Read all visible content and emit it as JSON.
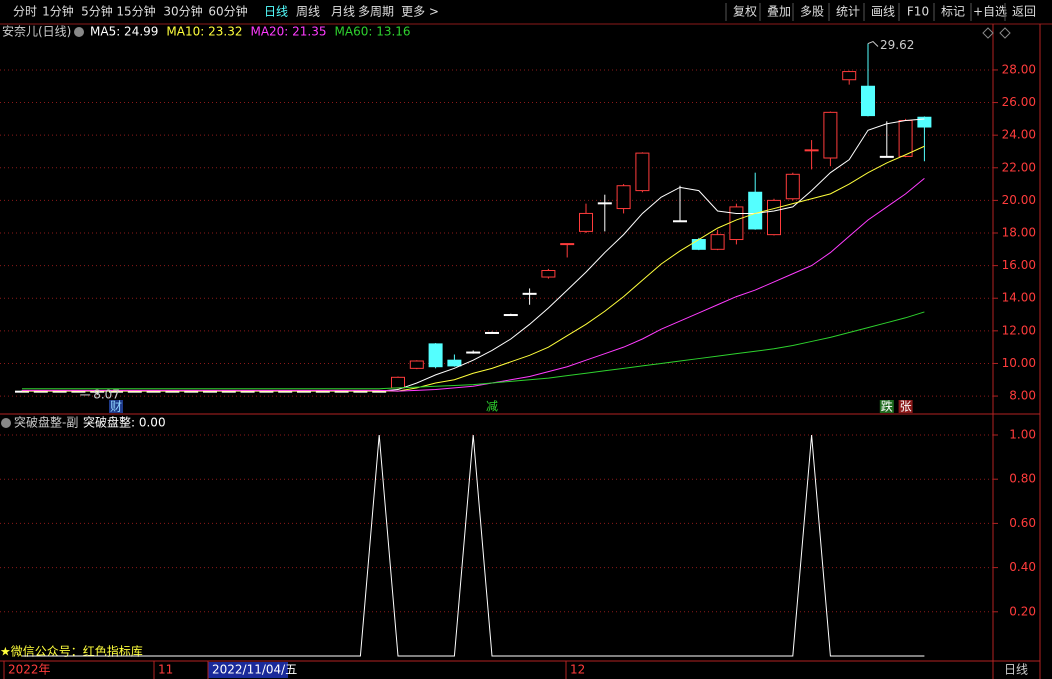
{
  "toolbar": {
    "left": [
      "分时",
      "1分钟",
      "5分钟",
      "15分钟",
      "30分钟",
      "60分钟",
      "日线",
      "周线",
      "月线",
      "多周期",
      "更多 >"
    ],
    "active": "日线",
    "right": [
      "复权",
      "叠加",
      "多股",
      "统计",
      "画线",
      "F10",
      "标记",
      "+自选",
      "返回"
    ]
  },
  "chart_data": [
    {
      "type": "candlestick",
      "title": "安奈儿(日线)",
      "up_color": "#ff3c3c",
      "down_color": "#54ffff",
      "doji_color": "#ffffff",
      "open": [
        8.3,
        8.3,
        8.3,
        8.3,
        8.3,
        8.3,
        8.3,
        8.3,
        8.3,
        8.3,
        8.3,
        8.3,
        8.3,
        8.3,
        8.3,
        8.3,
        8.3,
        8.3,
        8.3,
        8.3,
        8.5,
        9.7,
        11.2,
        10.2,
        10.7,
        11.9,
        13.0,
        14.3,
        15.3,
        17.3,
        18.1,
        19.85,
        19.5,
        20.6,
        null,
        18.75,
        17.6,
        17.0,
        17.6,
        20.5,
        17.9,
        20.1,
        23.05,
        22.6,
        27.4,
        27.0,
        22.7,
        22.7,
        25.1
      ],
      "close": [
        8.3,
        8.3,
        8.3,
        8.3,
        8.3,
        8.3,
        8.3,
        8.3,
        8.3,
        8.3,
        8.3,
        8.3,
        8.3,
        8.3,
        8.3,
        8.3,
        8.3,
        8.3,
        8.3,
        8.3,
        9.15,
        10.15,
        9.8,
        9.85,
        10.7,
        11.9,
        13.0,
        14.3,
        15.7,
        17.35,
        19.2,
        19.85,
        20.9,
        22.9,
        null,
        18.75,
        17.0,
        17.9,
        19.6,
        18.25,
        20.0,
        21.6,
        23.1,
        25.4,
        27.9,
        25.2,
        22.7,
        24.9,
        24.5
      ],
      "high": [
        8.35,
        8.35,
        8.35,
        8.35,
        8.35,
        8.35,
        8.35,
        8.35,
        8.35,
        8.35,
        8.35,
        8.35,
        8.35,
        8.35,
        8.35,
        8.35,
        8.35,
        8.35,
        8.35,
        8.35,
        9.2,
        10.2,
        11.25,
        10.55,
        10.8,
        11.95,
        13.05,
        14.6,
        15.8,
        17.35,
        19.8,
        20.35,
        21.0,
        22.95,
        null,
        20.9,
        17.7,
        18.2,
        19.8,
        21.7,
        20.1,
        21.7,
        23.7,
        25.45,
        27.95,
        29.62,
        24.85,
        25.0,
        25.15
      ],
      "low": [
        8.25,
        8.25,
        8.25,
        8.25,
        8.07,
        8.25,
        8.25,
        8.25,
        8.25,
        8.25,
        8.25,
        8.25,
        8.25,
        8.25,
        8.25,
        8.25,
        8.25,
        8.25,
        8.25,
        8.25,
        8.45,
        9.65,
        9.7,
        9.8,
        10.6,
        11.85,
        12.95,
        13.6,
        15.2,
        16.5,
        18.0,
        18.1,
        19.2,
        20.5,
        null,
        18.75,
        16.95,
        16.95,
        17.3,
        18.2,
        17.85,
        20.0,
        21.9,
        22.1,
        27.1,
        25.15,
        22.7,
        22.65,
        22.4
      ],
      "max_price": 29.62,
      "min_price": 8.07,
      "series": [
        {
          "name": "MA5",
          "legend_label": "MA5: 24.99",
          "color": "#ffffff",
          "values": [
            8.3,
            8.3,
            8.3,
            8.3,
            8.3,
            8.3,
            8.3,
            8.3,
            8.3,
            8.3,
            8.3,
            8.3,
            8.3,
            8.3,
            8.3,
            8.3,
            8.3,
            8.3,
            8.3,
            8.3,
            8.4,
            8.8,
            9.3,
            9.7,
            10.2,
            10.8,
            11.5,
            12.4,
            13.4,
            14.5,
            15.6,
            16.8,
            17.9,
            19.2,
            20.2,
            20.8,
            20.6,
            19.35,
            19.2,
            19.2,
            19.35,
            19.6,
            20.6,
            21.7,
            22.5,
            24.3,
            24.7,
            24.9,
            24.99
          ]
        },
        {
          "name": "MA10",
          "legend_label": "MA10: 23.32",
          "color": "#ffff3c",
          "values": [
            8.32,
            8.32,
            8.32,
            8.32,
            8.32,
            8.32,
            8.32,
            8.32,
            8.32,
            8.32,
            8.32,
            8.32,
            8.32,
            8.32,
            8.32,
            8.32,
            8.32,
            8.32,
            8.32,
            8.32,
            8.3,
            8.5,
            8.8,
            9.0,
            9.4,
            9.7,
            10.1,
            10.5,
            11.0,
            11.7,
            12.4,
            13.2,
            14.1,
            15.1,
            16.1,
            16.9,
            17.6,
            18.3,
            18.8,
            19.2,
            19.5,
            19.8,
            20.1,
            20.4,
            21.0,
            21.7,
            22.3,
            22.8,
            23.32
          ]
        },
        {
          "name": "MA20",
          "legend_label": "MA20: 21.35",
          "color": "#ff3cff",
          "values": [
            8.35,
            8.35,
            8.35,
            8.35,
            8.35,
            8.35,
            8.35,
            8.35,
            8.35,
            8.35,
            8.35,
            8.35,
            8.35,
            8.35,
            8.35,
            8.35,
            8.35,
            8.35,
            8.35,
            8.35,
            8.3,
            8.35,
            8.4,
            8.5,
            8.6,
            8.8,
            9.0,
            9.2,
            9.5,
            9.8,
            10.2,
            10.6,
            11.0,
            11.5,
            12.1,
            12.6,
            13.1,
            13.6,
            14.1,
            14.5,
            15.0,
            15.5,
            16.0,
            16.8,
            17.8,
            18.8,
            19.6,
            20.4,
            21.35
          ]
        },
        {
          "name": "MA60",
          "legend_label": "MA60: 13.16",
          "color": "#2ed12e",
          "values": [
            8.45,
            8.45,
            8.45,
            8.45,
            8.45,
            8.45,
            8.45,
            8.45,
            8.45,
            8.45,
            8.45,
            8.45,
            8.45,
            8.45,
            8.45,
            8.45,
            8.45,
            8.45,
            8.45,
            8.45,
            8.5,
            8.55,
            8.6,
            8.65,
            8.7,
            8.8,
            8.9,
            9.0,
            9.1,
            9.25,
            9.4,
            9.55,
            9.7,
            9.85,
            10.0,
            10.15,
            10.3,
            10.45,
            10.6,
            10.75,
            10.9,
            11.1,
            11.35,
            11.6,
            11.9,
            12.2,
            12.5,
            12.8,
            13.16
          ]
        }
      ],
      "ylim": [
        6.9,
        30.45
      ],
      "yticks": [
        {
          "value": 8,
          "label": "8.00"
        },
        {
          "value": 10,
          "label": "10.00"
        },
        {
          "value": 12,
          "label": "12.00"
        },
        {
          "value": 14,
          "label": "14.00"
        },
        {
          "value": 16,
          "label": "16.00"
        },
        {
          "value": 18,
          "label": "18.00"
        },
        {
          "value": 20,
          "label": "20.00"
        },
        {
          "value": 22,
          "label": "22.00"
        },
        {
          "value": 24,
          "label": "24.00"
        },
        {
          "value": 26,
          "label": "26.00"
        },
        {
          "value": 28,
          "label": "28.00"
        }
      ],
      "grid": true,
      "event_markers": [
        "财",
        "减",
        "跌",
        "张"
      ]
    },
    {
      "type": "line",
      "title": "突破盘整-副",
      "legend_label": "突破盘整: 0.00",
      "series": [
        {
          "name": "突破盘整",
          "color": "#ffffff",
          "values": [
            0,
            0,
            0,
            0,
            0,
            0,
            0,
            0,
            0,
            0,
            0,
            0,
            0,
            0,
            0,
            0,
            0,
            0,
            0,
            1,
            0,
            0,
            0,
            0,
            1,
            0,
            0,
            0,
            0,
            0,
            0,
            0,
            0,
            0,
            0,
            0,
            0,
            0,
            0,
            0,
            0,
            0,
            1,
            0,
            0,
            0,
            0,
            0,
            0
          ]
        }
      ],
      "ylim": [
        0,
        1
      ],
      "yticks": [
        {
          "value": 0.2,
          "label": "0.20"
        },
        {
          "value": 0.4,
          "label": "0.40"
        },
        {
          "value": 0.6,
          "label": "0.60"
        },
        {
          "value": 0.8,
          "label": "0.80"
        },
        {
          "value": 1,
          "label": "1.00"
        }
      ],
      "grid": true
    }
  ],
  "date_axis": [
    "2022年",
    "11",
    "2022/11/04/五",
    "12"
  ],
  "period": "日线",
  "watermark": "★微信公众号：红色指标库"
}
